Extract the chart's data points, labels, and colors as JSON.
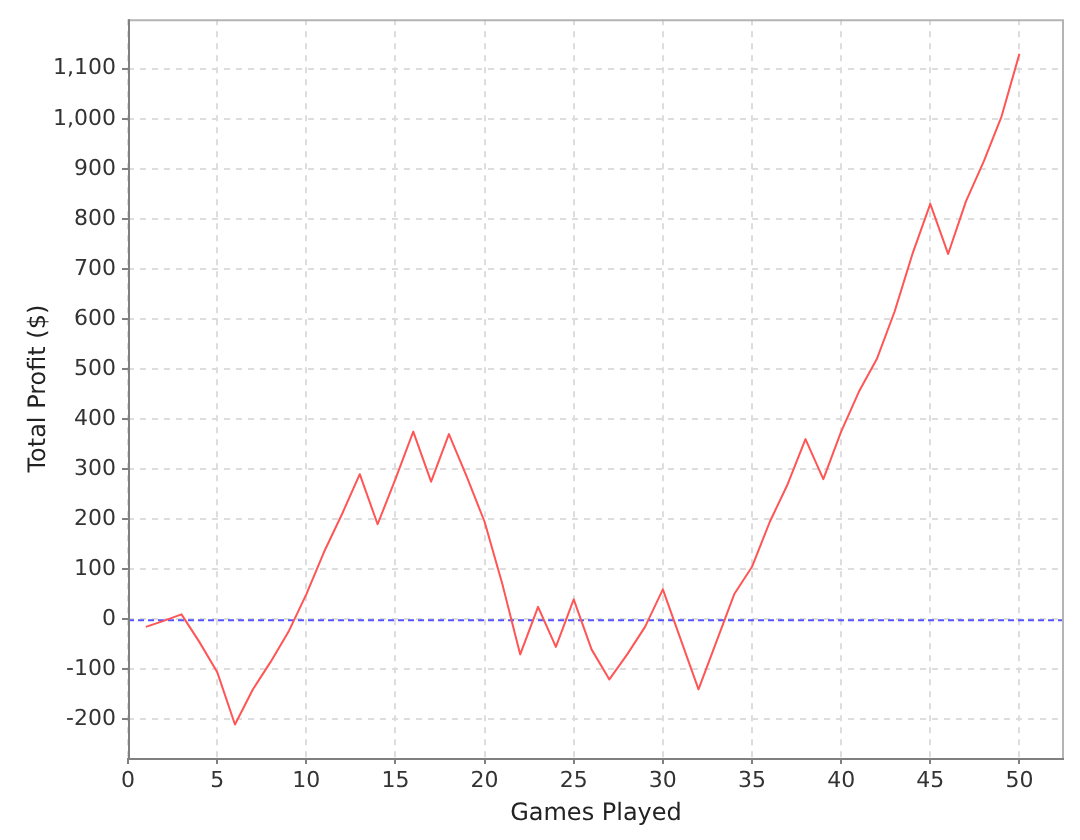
{
  "chart_data": {
    "type": "line",
    "xlabel": "Games Played",
    "ylabel": "Total Profit ($)",
    "x": [
      1,
      2,
      3,
      4,
      5,
      6,
      7,
      8,
      9,
      10,
      11,
      12,
      13,
      14,
      15,
      16,
      17,
      18,
      19,
      20,
      21,
      22,
      23,
      24,
      25,
      26,
      27,
      28,
      29,
      30,
      31,
      32,
      33,
      34,
      35,
      36,
      37,
      38,
      39,
      40,
      41,
      42,
      43,
      44,
      45,
      46,
      47,
      48,
      49,
      50
    ],
    "series": [
      {
        "color": "#ff5555",
        "values": [
          -15,
          -3,
          10,
          -45,
          -105,
          -210,
          -140,
          -85,
          -25,
          50,
          135,
          210,
          290,
          190,
          280,
          375,
          275,
          370,
          285,
          195,
          70,
          -70,
          25,
          -55,
          40,
          -60,
          -120,
          -70,
          -15,
          60,
          -40,
          -140,
          -45,
          50,
          105,
          195,
          270,
          360,
          280,
          375,
          455,
          520,
          615,
          730,
          830,
          730,
          835,
          915,
          1005,
          1130
        ]
      }
    ],
    "xlim": [
      0,
      52.5
    ],
    "ylim": [
      -277,
      1199
    ],
    "xticks": [
      0,
      5,
      10,
      15,
      20,
      25,
      30,
      35,
      40,
      45,
      50
    ],
    "yticks": [
      -200,
      -100,
      0,
      100,
      200,
      300,
      400,
      500,
      600,
      700,
      800,
      900,
      {
        "value": 1000,
        "label": "1,000"
      },
      {
        "value": 1100,
        "label": "1,100"
      }
    ],
    "grid": true,
    "marker": "none",
    "line_style": "solid",
    "ref_lines": [
      {
        "axis": "y",
        "value": 0,
        "color": "#5555ff",
        "line_style": "dashed"
      }
    ]
  }
}
